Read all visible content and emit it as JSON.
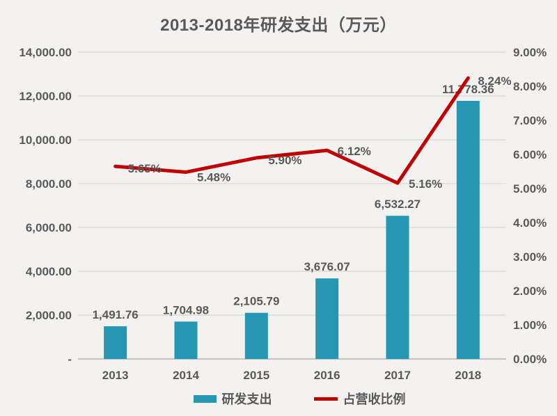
{
  "title": "2013-2018年研发支出（万元）",
  "legend": {
    "items": [
      {
        "label": "研发支出",
        "type": "bar",
        "color": "#2697B3"
      },
      {
        "label": "占营收比例",
        "type": "line",
        "color": "#C00000"
      }
    ]
  },
  "chart_data": {
    "type": "combo-bar-line",
    "title": "2013-2018年研发支出（万元）",
    "categories": [
      "2013",
      "2014",
      "2015",
      "2016",
      "2017",
      "2018"
    ],
    "series": [
      {
        "name": "研发支出",
        "type": "bar",
        "axis": "left",
        "color": "#2697B3",
        "values": [
          1491.76,
          1704.98,
          2105.79,
          3676.07,
          6532.27,
          11778.36
        ],
        "data_labels": [
          "1,491.76",
          "1,704.98",
          "2,105.79",
          "3,676.07",
          "6,532.27",
          "11,778.36"
        ]
      },
      {
        "name": "占营收比例",
        "type": "line",
        "axis": "right",
        "color": "#C00000",
        "values": [
          5.65,
          5.48,
          5.9,
          6.12,
          5.16,
          8.24
        ],
        "data_labels": [
          "5.65%",
          "5.48%",
          "5.90%",
          "6.12%",
          "5.16%",
          "8.24%"
        ]
      }
    ],
    "y_axis_left": {
      "min": 0,
      "max": 14000,
      "step": 2000,
      "tick_labels": [
        "14,000.00",
        "12,000.00",
        "10,000.00",
        "8,000.00",
        "6,000.00",
        "4,000.00",
        "2,000.00",
        "-"
      ]
    },
    "y_axis_right": {
      "min": 0,
      "max": 9,
      "step": 1,
      "tick_labels": [
        "9.00%",
        "8.00%",
        "7.00%",
        "6.00%",
        "5.00%",
        "4.00%",
        "3.00%",
        "2.00%",
        "1.00%",
        "0.00%"
      ]
    },
    "grid": true,
    "legend_position": "bottom"
  },
  "colors": {
    "background": "#F3F2F0",
    "text": "#595959",
    "gridline": "#DAD9D6",
    "axis_line": "#C4C3C0",
    "bar": "#2697B3",
    "line": "#C00000"
  }
}
